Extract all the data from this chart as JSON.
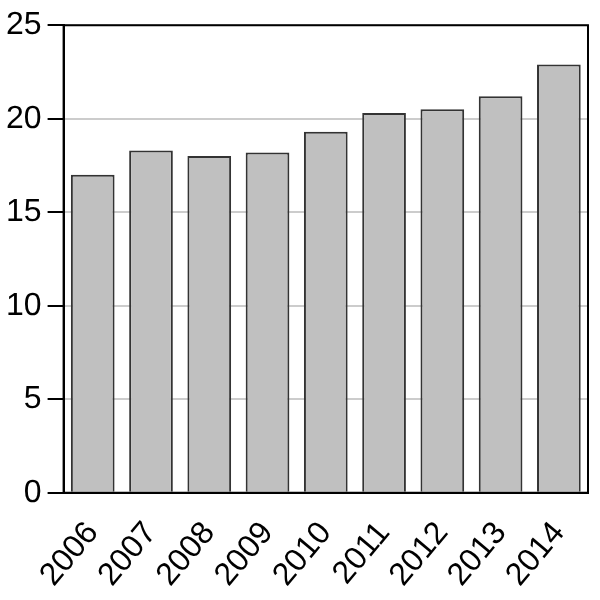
{
  "chart_data": {
    "type": "bar",
    "categories": [
      "2006",
      "2007",
      "2008",
      "2009",
      "2010",
      "2011",
      "2012",
      "2013",
      "2014"
    ],
    "values": [
      17.0,
      18.3,
      18.0,
      18.2,
      19.3,
      20.3,
      20.5,
      21.2,
      22.9
    ],
    "color": "#c0c0c0",
    "ylim": [
      0,
      25
    ],
    "yticks": [
      0,
      5,
      10,
      15,
      20,
      25
    ],
    "grid": "y"
  }
}
